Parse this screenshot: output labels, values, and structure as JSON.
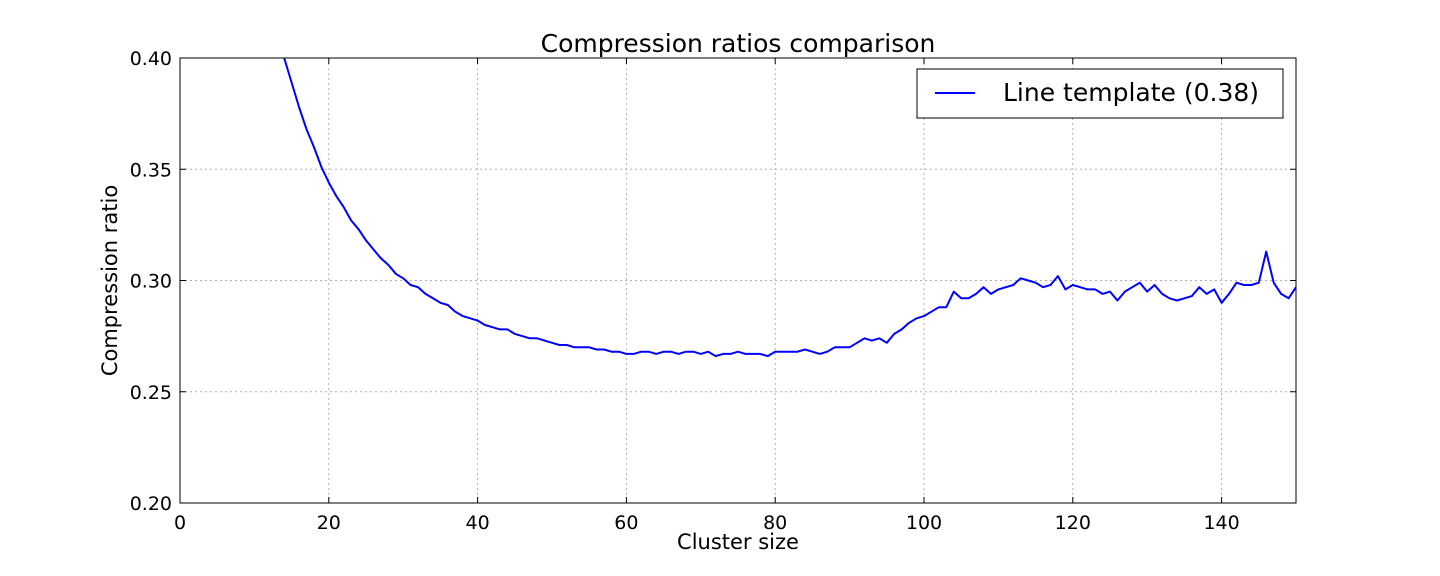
{
  "chart_data": {
    "type": "line",
    "title": "Compression ratios comparison",
    "xlabel": "Cluster size",
    "ylabel": "Compression ratio",
    "xlim": [
      0,
      150
    ],
    "ylim": [
      0.2,
      0.4
    ],
    "xticks": [
      0,
      20,
      40,
      60,
      80,
      100,
      120,
      140
    ],
    "yticks": [
      0.2,
      0.25,
      0.3,
      0.35,
      0.4
    ],
    "xtick_labels": [
      "0",
      "20",
      "40",
      "60",
      "80",
      "100",
      "120",
      "140"
    ],
    "ytick_labels": [
      "0.20",
      "0.25",
      "0.30",
      "0.35",
      "0.40"
    ],
    "grid": true,
    "legend_position": "top-right",
    "series": [
      {
        "name": "Line template (0.38)",
        "color": "#0000ff",
        "x": [
          14,
          15,
          16,
          17,
          18,
          19,
          20,
          21,
          22,
          23,
          24,
          25,
          26,
          27,
          28,
          29,
          30,
          31,
          32,
          33,
          34,
          35,
          36,
          37,
          38,
          39,
          40,
          41,
          42,
          43,
          44,
          45,
          46,
          47,
          48,
          49,
          50,
          51,
          52,
          53,
          54,
          55,
          56,
          57,
          58,
          59,
          60,
          61,
          62,
          63,
          64,
          65,
          66,
          67,
          68,
          69,
          70,
          71,
          72,
          73,
          74,
          75,
          76,
          77,
          78,
          79,
          80,
          81,
          82,
          83,
          84,
          85,
          86,
          87,
          88,
          89,
          90,
          91,
          92,
          93,
          94,
          95,
          96,
          97,
          98,
          99,
          100,
          101,
          102,
          103,
          104,
          105,
          106,
          107,
          108,
          109,
          110,
          111,
          112,
          113,
          114,
          115,
          116,
          117,
          118,
          119,
          120,
          121,
          122,
          123,
          124,
          125,
          126,
          127,
          128,
          129,
          130,
          131,
          132,
          133,
          134,
          135,
          136,
          137,
          138,
          139,
          140,
          141,
          142,
          143,
          144,
          145,
          146,
          147,
          148,
          149,
          150
        ],
        "y": [
          0.4,
          0.389,
          0.378,
          0.368,
          0.36,
          0.351,
          0.344,
          0.338,
          0.333,
          0.327,
          0.323,
          0.318,
          0.314,
          0.31,
          0.307,
          0.303,
          0.301,
          0.298,
          0.297,
          0.294,
          0.292,
          0.29,
          0.289,
          0.286,
          0.284,
          0.283,
          0.282,
          0.28,
          0.279,
          0.278,
          0.278,
          0.276,
          0.275,
          0.274,
          0.274,
          0.273,
          0.272,
          0.271,
          0.271,
          0.27,
          0.27,
          0.27,
          0.269,
          0.269,
          0.268,
          0.268,
          0.267,
          0.267,
          0.268,
          0.268,
          0.267,
          0.268,
          0.268,
          0.267,
          0.268,
          0.268,
          0.267,
          0.268,
          0.266,
          0.267,
          0.267,
          0.268,
          0.267,
          0.267,
          0.267,
          0.266,
          0.268,
          0.268,
          0.268,
          0.268,
          0.269,
          0.268,
          0.267,
          0.268,
          0.27,
          0.27,
          0.27,
          0.272,
          0.274,
          0.273,
          0.274,
          0.272,
          0.276,
          0.278,
          0.281,
          0.283,
          0.284,
          0.286,
          0.288,
          0.288,
          0.295,
          0.292,
          0.292,
          0.294,
          0.297,
          0.294,
          0.296,
          0.297,
          0.298,
          0.301,
          0.3,
          0.299,
          0.297,
          0.298,
          0.302,
          0.296,
          0.298,
          0.297,
          0.296,
          0.296,
          0.294,
          0.295,
          0.291,
          0.295,
          0.297,
          0.299,
          0.295,
          0.298,
          0.294,
          0.292,
          0.291,
          0.292,
          0.293,
          0.297,
          0.294,
          0.296,
          0.29,
          0.294,
          0.299,
          0.298,
          0.298,
          0.299,
          0.313,
          0.299,
          0.294,
          0.292,
          0.297
        ]
      }
    ]
  }
}
